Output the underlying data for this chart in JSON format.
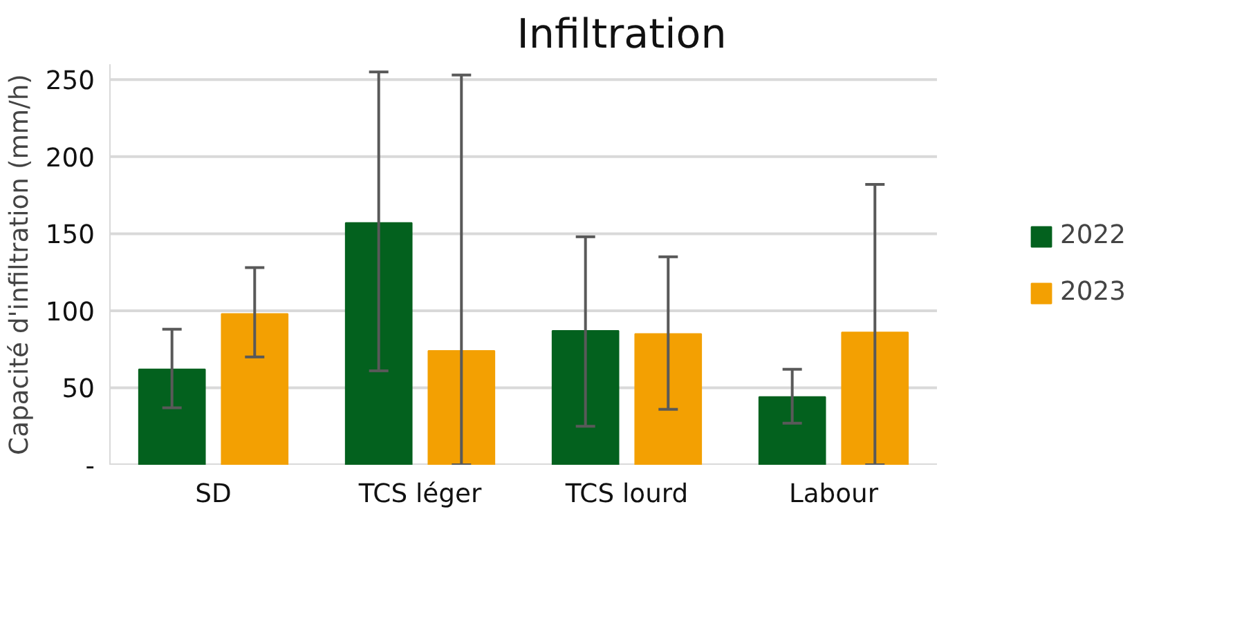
{
  "chart_data": {
    "type": "bar",
    "title": "Infiltration",
    "ylabel": "Capacité d'infiltration (mm/h)",
    "categories": [
      "SD",
      "TCS léger",
      "TCS lourd",
      "Labour"
    ],
    "series": [
      {
        "name": "2022",
        "color": "#03611e",
        "values": [
          62,
          157,
          87,
          44
        ],
        "errors": [
          [
            37,
            88
          ],
          [
            61,
            255
          ],
          [
            25,
            148
          ],
          [
            27,
            62
          ]
        ]
      },
      {
        "name": "2023",
        "color": "#f3a002",
        "values": [
          98,
          74,
          85,
          86
        ],
        "errors": [
          [
            70,
            128
          ],
          [
            0,
            253
          ],
          [
            36,
            135
          ],
          [
            0,
            182
          ]
        ]
      }
    ],
    "ylim": [
      0,
      260
    ],
    "yticks": [
      {
        "value": 0,
        "label": "-"
      },
      50,
      100,
      150,
      200,
      250
    ],
    "grid": "y",
    "legend": "right"
  }
}
